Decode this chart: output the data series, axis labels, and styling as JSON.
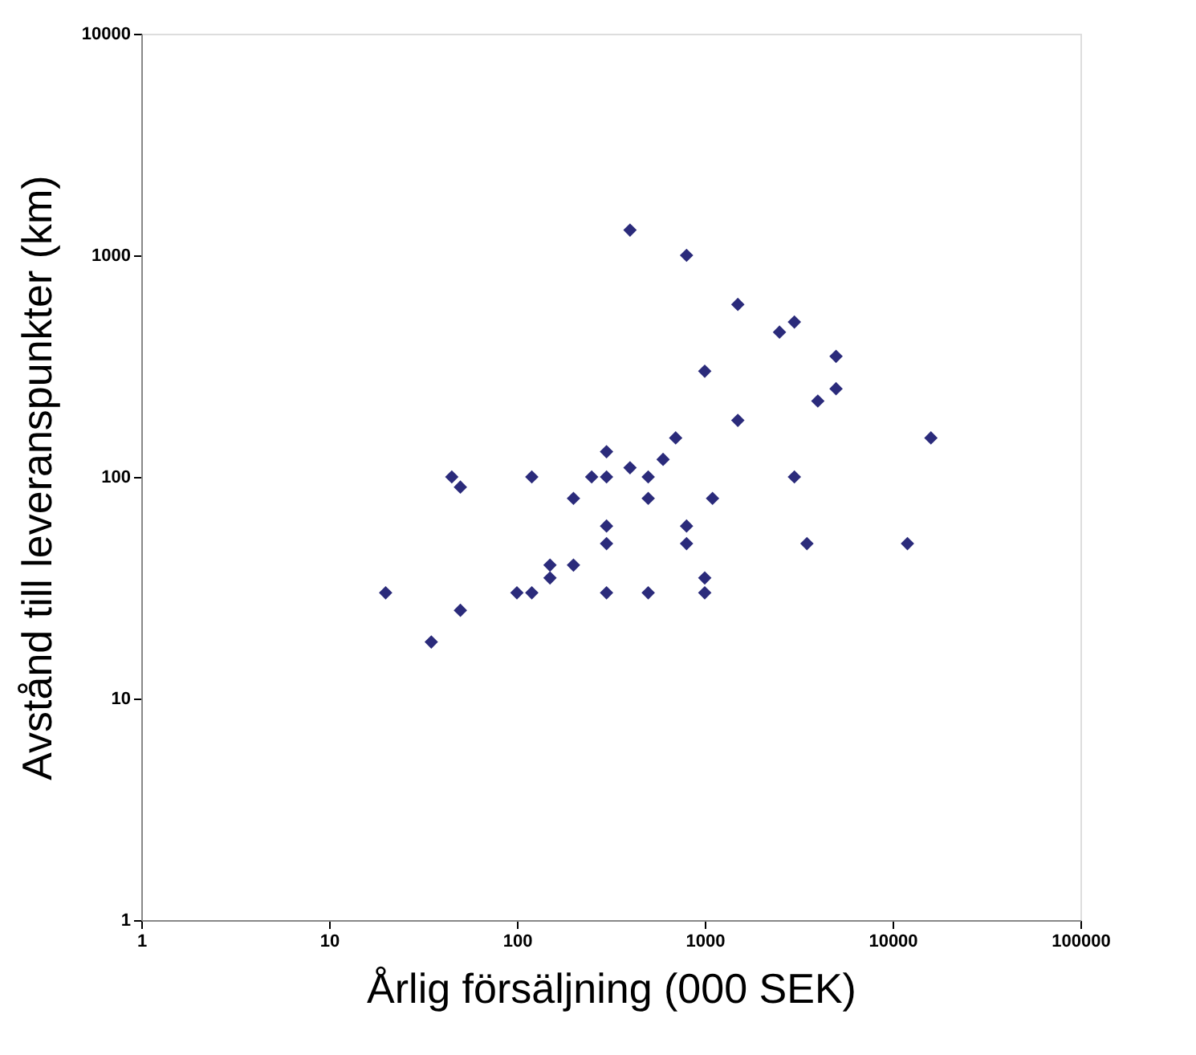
{
  "chart_data": {
    "type": "scatter",
    "xlabel": "Årlig försäljning (000 SEK)",
    "ylabel": "Avstånd till leveranspunkter (km)",
    "log": "xy",
    "marker": "diamond",
    "grid": false,
    "xlim": [
      1,
      100000
    ],
    "ylim": [
      1,
      10000
    ],
    "xticks": [
      1,
      10,
      100,
      1000,
      10000,
      100000
    ],
    "yticks": [
      1,
      10,
      100,
      1000,
      10000
    ],
    "series": [
      {
        "color": "#2b2b7b",
        "x": [
          20,
          35,
          45,
          50,
          50,
          100,
          120,
          120,
          150,
          150,
          200,
          200,
          250,
          300,
          300,
          300,
          300,
          300,
          400,
          400,
          500,
          500,
          500,
          600,
          700,
          800,
          800,
          800,
          1000,
          1000,
          1000,
          1100,
          1500,
          1500,
          2500,
          3000,
          3000,
          3500,
          4000,
          5000,
          5000,
          12000,
          16000
        ],
        "values": [
          30,
          18,
          100,
          90,
          25,
          30,
          100,
          30,
          40,
          35,
          40,
          80,
          100,
          130,
          100,
          60,
          50,
          30,
          1300,
          110,
          100,
          80,
          30,
          120,
          150,
          1000,
          60,
          50,
          300,
          35,
          30,
          80,
          600,
          180,
          450,
          500,
          100,
          50,
          220,
          350,
          250,
          50,
          150
        ]
      }
    ]
  }
}
